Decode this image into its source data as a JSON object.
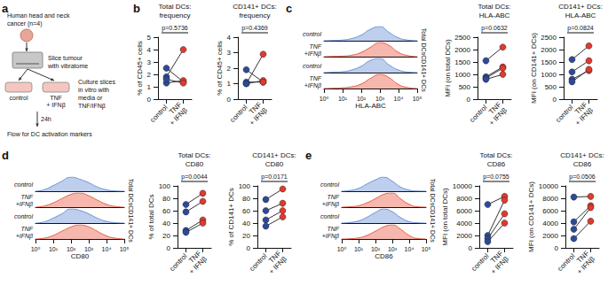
{
  "panel_labels": [
    "a",
    "b",
    "c",
    "d",
    "e"
  ],
  "schematic": {
    "title": "Human head and neck\ncancer (n=4)",
    "slice": "Slice tumour\nwith vibratome",
    "culture": "Culture slices\nin vitro with\nmedia or\nTNF/IFNβ",
    "control": "control",
    "treated": "TNF\n+ IFNβ",
    "time": "24h",
    "readout": "Flow for DC activation markers"
  },
  "chart_data": [
    {
      "type": "paired",
      "title": "Total DCs:\nfrequency",
      "categories": [
        "control",
        "TNF\n+ IFNβ"
      ],
      "ylabel": "% of CD45+ cells",
      "ylim": [
        0,
        5
      ],
      "yticks": [
        0,
        1,
        2,
        3,
        4,
        5
      ],
      "colors": [
        "#2c4a9a",
        "#e03a2e"
      ],
      "annotation": "p=0.5736",
      "series": [
        {
          "values": [
            1.8,
            4.0
          ]
        },
        {
          "values": [
            2.5,
            1.4
          ]
        },
        {
          "values": [
            1.3,
            1.5
          ]
        },
        {
          "values": [
            1.6,
            1.3
          ]
        }
      ]
    },
    {
      "type": "paired",
      "title": "CD141+ DCs:\nfrequency",
      "categories": [
        "control",
        "TNF\n+ IFNβ"
      ],
      "ylabel": "% of CD45+ cells",
      "ylim": [
        0,
        4
      ],
      "yticks": [
        0,
        1,
        2,
        3,
        4
      ],
      "colors": [
        "#2c4a9a",
        "#e03a2e"
      ],
      "annotation": "p=0.4369",
      "series": [
        {
          "values": [
            1.0,
            2.9
          ]
        },
        {
          "values": [
            1.1,
            1.1
          ]
        },
        {
          "values": [
            1.0,
            1.2
          ]
        },
        {
          "values": [
            1.9,
            1.1
          ]
        }
      ]
    },
    {
      "type": "density",
      "xlabel": "HLA-ABC",
      "log": "x",
      "xlim": [
        1,
        100000
      ],
      "xticks": [
        {
          "value": 1,
          "label": "10⁰"
        },
        {
          "value": 10,
          "label": "10¹"
        },
        {
          "value": 100,
          "label": "10²"
        },
        {
          "value": 1000,
          "label": "10³"
        },
        {
          "value": 10000,
          "label": "10⁴"
        },
        {
          "value": 100000,
          "label": "10⁵"
        }
      ],
      "ylim": [
        0,
        100
      ],
      "tick_labels": "x",
      "groups": [
        "Total DCs",
        "CD141+ DCs"
      ],
      "x": [
        1,
        3,
        10,
        30,
        100,
        300,
        1000,
        3000,
        10000,
        30000,
        100000
      ],
      "series": [
        {
          "name": "control",
          "color": "#6f93d6",
          "values": [
            0,
            2,
            5,
            15,
            40,
            80,
            100,
            60,
            20,
            5,
            0
          ]
        },
        {
          "name": "TNF\n+IFNβ",
          "color": "#e8604c",
          "values": [
            0,
            2,
            4,
            10,
            30,
            65,
            100,
            80,
            30,
            8,
            0
          ]
        },
        {
          "name": "control",
          "color": "#6f93d6",
          "values": [
            0,
            3,
            6,
            18,
            45,
            85,
            100,
            55,
            18,
            4,
            0
          ]
        },
        {
          "name": "TNF\n+IFNβ",
          "color": "#e8604c",
          "values": [
            0,
            2,
            5,
            12,
            32,
            70,
            100,
            78,
            28,
            7,
            0
          ]
        }
      ]
    },
    {
      "type": "paired",
      "title": "Total DCs:\nHLA-ABC",
      "categories": [
        "control",
        "TNF\n+ IFNβ"
      ],
      "ylabel": "MFI (on total DCs)",
      "ylim": [
        0,
        2500
      ],
      "yticks": [
        0,
        500,
        1000,
        1500,
        2000,
        2500
      ],
      "colors": [
        "#2c4a9a",
        "#e03a2e"
      ],
      "annotation": "p=0.0632",
      "series": [
        {
          "values": [
            1550,
            2100
          ]
        },
        {
          "values": [
            900,
            1300
          ]
        },
        {
          "values": [
            850,
            1250
          ]
        },
        {
          "values": [
            800,
            1000
          ]
        }
      ]
    },
    {
      "type": "paired",
      "title": "CD141+ DCs:\nHLA-ABC",
      "categories": [
        "control",
        "TNF\n+ IFNβ"
      ],
      "ylabel": "MFI (on CD141+ DCs)",
      "ylim": [
        0,
        2500
      ],
      "yticks": [
        0,
        500,
        1000,
        1500,
        2000,
        2500
      ],
      "colors": [
        "#2c4a9a",
        "#e03a2e"
      ],
      "annotation": "p=0.0824",
      "series": [
        {
          "values": [
            1600,
            2150
          ]
        },
        {
          "values": [
            1100,
            1550
          ]
        },
        {
          "values": [
            800,
            1150
          ]
        },
        {
          "values": [
            700,
            1200
          ]
        }
      ]
    },
    {
      "type": "density",
      "xlabel": "CD80",
      "log": "x",
      "xlim": [
        1,
        100000
      ],
      "xticks": [
        {
          "value": 1,
          "label": "10⁰"
        },
        {
          "value": 10,
          "label": "10¹"
        },
        {
          "value": 100,
          "label": "10²"
        },
        {
          "value": 1000,
          "label": "10³"
        },
        {
          "value": 10000,
          "label": "10⁴"
        },
        {
          "value": 100000,
          "label": "10⁵"
        }
      ],
      "ylim": [
        0,
        100
      ],
      "tick_labels": "x",
      "groups": [
        "Total DCs",
        "CD141+ DCs"
      ],
      "x": [
        1,
        3,
        10,
        30,
        100,
        300,
        1000,
        3000,
        10000,
        30000,
        100000
      ],
      "series": [
        {
          "name": "control",
          "color": "#6f93d6",
          "values": [
            0,
            10,
            40,
            70,
            100,
            85,
            60,
            30,
            10,
            2,
            0
          ]
        },
        {
          "name": "TNF\n+IFNβ",
          "color": "#e8604c",
          "values": [
            0,
            8,
            30,
            60,
            90,
            100,
            80,
            50,
            20,
            5,
            0
          ]
        },
        {
          "name": "control",
          "color": "#6f93d6",
          "values": [
            0,
            8,
            35,
            65,
            100,
            90,
            65,
            35,
            12,
            3,
            0
          ]
        },
        {
          "name": "TNF\n+IFNβ",
          "color": "#e8604c",
          "values": [
            0,
            6,
            25,
            55,
            85,
            100,
            85,
            55,
            22,
            6,
            0
          ]
        }
      ]
    },
    {
      "type": "paired",
      "title": "Total DCs:\nCD80",
      "categories": [
        "control",
        "TNF\n+ IFNβ"
      ],
      "ylabel": "% of total DCs",
      "ylim": [
        0,
        100
      ],
      "yticks": [
        0,
        20,
        40,
        60,
        80,
        100
      ],
      "colors": [
        "#2c4a9a",
        "#e03a2e"
      ],
      "annotation": "p=0.0044",
      "series": [
        {
          "values": [
            70,
            88
          ]
        },
        {
          "values": [
            58,
            75
          ]
        },
        {
          "values": [
            28,
            45
          ]
        },
        {
          "values": [
            25,
            40
          ]
        }
      ]
    },
    {
      "type": "paired",
      "title": "CD141+ DCs:\nCD80",
      "categories": [
        "control",
        "TNF\n+ IFNβ"
      ],
      "ylabel": "% of CD141+ DCs",
      "ylim": [
        0,
        100
      ],
      "yticks": [
        0,
        20,
        40,
        60,
        80,
        100
      ],
      "colors": [
        "#2c4a9a",
        "#e03a2e"
      ],
      "annotation": "p=0.0171",
      "series": [
        {
          "values": [
            78,
            95
          ]
        },
        {
          "values": [
            60,
            72
          ]
        },
        {
          "values": [
            45,
            60
          ]
        },
        {
          "values": [
            35,
            50
          ]
        }
      ]
    },
    {
      "type": "density",
      "xlabel": "CD86",
      "log": "x",
      "xlim": [
        1,
        100000
      ],
      "xticks": [
        {
          "value": 1,
          "label": "10⁰"
        },
        {
          "value": 10,
          "label": "10¹"
        },
        {
          "value": 100,
          "label": "10²"
        },
        {
          "value": 1000,
          "label": "10³"
        },
        {
          "value": 10000,
          "label": "10⁴"
        },
        {
          "value": 100000,
          "label": "10⁵"
        }
      ],
      "ylim": [
        0,
        100
      ],
      "tick_labels": "x",
      "groups": [
        "Total DCs",
        "CD141+ DCs"
      ],
      "x": [
        1,
        3,
        10,
        30,
        100,
        300,
        1000,
        3000,
        10000,
        30000,
        100000
      ],
      "series": [
        {
          "name": "control",
          "color": "#6f93d6",
          "values": [
            0,
            5,
            20,
            50,
            80,
            100,
            70,
            30,
            8,
            1,
            0
          ]
        },
        {
          "name": "TNF\n+IFNβ",
          "color": "#e8604c",
          "values": [
            0,
            3,
            10,
            30,
            60,
            90,
            100,
            60,
            20,
            3,
            0
          ]
        },
        {
          "name": "control",
          "color": "#6f93d6",
          "values": [
            0,
            4,
            15,
            40,
            75,
            100,
            80,
            40,
            10,
            2,
            0
          ]
        },
        {
          "name": "TNF\n+IFNβ",
          "color": "#e8604c",
          "values": [
            0,
            2,
            8,
            25,
            55,
            85,
            100,
            70,
            25,
            4,
            0
          ]
        }
      ]
    },
    {
      "type": "paired",
      "title": "Total DCs:\nCD86",
      "categories": [
        "control",
        "TNF\n+ IFNβ"
      ],
      "ylabel": "MFI (on total DCs)",
      "ylim": [
        0,
        10000
      ],
      "yticks": [
        0,
        2000,
        4000,
        6000,
        8000,
        10000
      ],
      "colors": [
        "#2c4a9a",
        "#e03a2e"
      ],
      "annotation": "p=0.0755",
      "series": [
        {
          "values": [
            7000,
            8300
          ]
        },
        {
          "values": [
            2000,
            7700
          ]
        },
        {
          "values": [
            1500,
            5500
          ]
        },
        {
          "values": [
            1000,
            4000
          ]
        }
      ]
    },
    {
      "type": "paired",
      "title": "CD141+ DCs:\nCD86",
      "categories": [
        "control",
        "TNF\n+ IFNβ"
      ],
      "ylabel": "MFI (on CD141+ DCs)",
      "ylim": [
        0,
        10000
      ],
      "yticks": [
        0,
        2000,
        4000,
        6000,
        8000,
        10000
      ],
      "colors": [
        "#2c4a9a",
        "#e03a2e"
      ],
      "annotation": "p=0.0506",
      "series": [
        {
          "values": [
            8200,
            8300
          ]
        },
        {
          "values": [
            4200,
            6800
          ]
        },
        {
          "values": [
            3000,
            6500
          ]
        },
        {
          "values": [
            1500,
            4300
          ]
        }
      ]
    }
  ]
}
